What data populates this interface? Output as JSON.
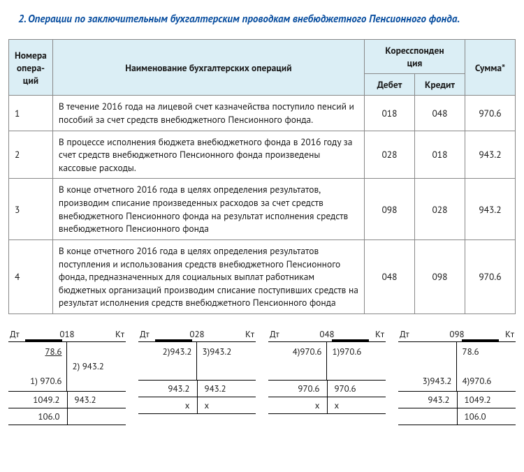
{
  "title": "2. Операции по заключительным бухгалтерским проводкам внебюджетного Пенсионного фонда.",
  "table": {
    "headers": {
      "num": "Номера опера-\nций",
      "name": "Наименование бухгалтерских операций",
      "corr": "Коресспонден\nция",
      "debet": "Дебет",
      "kredit": "Кредит",
      "sum": "Сумма*"
    },
    "rows": [
      {
        "n": "1",
        "desc": "В течение 2016 года на лицевой счет казначейства поступило пенсий и пособий за счет средств внебюджетного Пенсионного фонда.",
        "d": "018",
        "k": "048",
        "s": "970.6"
      },
      {
        "n": "2",
        "desc": "В процессе исполнения бюджета внебюджетного фонда в 2016 году за счет средств внебюджетного Пенсионного фонда произведены кассовые расходы.",
        "d": "028",
        "k": "018",
        "s": "943.2"
      },
      {
        "n": "3",
        "desc": "В конце отчетного 2016 года в целях определения результатов, производим списание произведенных расходов за счет средств внебюджетного Пенсионного фонда на результат исполнения средств внебюджетного Пенсионного фонда",
        "d": "098",
        "k": "028",
        "s": "943.2"
      },
      {
        "n": "4",
        "desc": "В конце отчетного 2016 года в целях определения результатов поступления и использования средств внебюджетного Пенсионного фонда, предназначенных для социальных выплат работникам бюджетных организаций производим списание поступивших средств на результат исполнения средств внебюджетного Пенсионного фонда",
        "d": "048",
        "k": "098",
        "s": "970.6"
      }
    ]
  },
  "tacc_labels": {
    "dt": "Дт",
    "kt": "Кт"
  },
  "taccounts": [
    {
      "acct": "018",
      "bar_side": "left",
      "dt_lines": "78.6\n\n1) 970.6",
      "kt_lines": "\n2) 943.2",
      "dt_first_underline": true,
      "sum_dt": "1049.2",
      "sum_kt": "943.2",
      "bal_dt": "106.0",
      "bal_kt": ""
    },
    {
      "acct": "028",
      "bar_side": "left",
      "dt_lines": "2)943.2",
      "kt_lines": "3)943.2",
      "dt_first_underline": false,
      "sum_dt": "943.2",
      "sum_kt": "943.2",
      "bal_dt": "x",
      "bal_kt": "x"
    },
    {
      "acct": "048",
      "bar_side": "right",
      "dt_lines": "4)970.6",
      "kt_lines": "1)970.6",
      "dt_first_underline": false,
      "sum_dt": "970.6",
      "sum_kt": "970.6",
      "bal_dt": "x",
      "bal_kt": "x"
    },
    {
      "acct": "098",
      "bar_side": "right",
      "dt_lines": "\n\n3)943.2",
      "kt_lines": "78.6\n\n4)970.6",
      "dt_first_underline": false,
      "sum_dt": "943.2",
      "sum_kt": "1049.2",
      "bal_dt": "",
      "bal_kt": "106.0"
    }
  ]
}
